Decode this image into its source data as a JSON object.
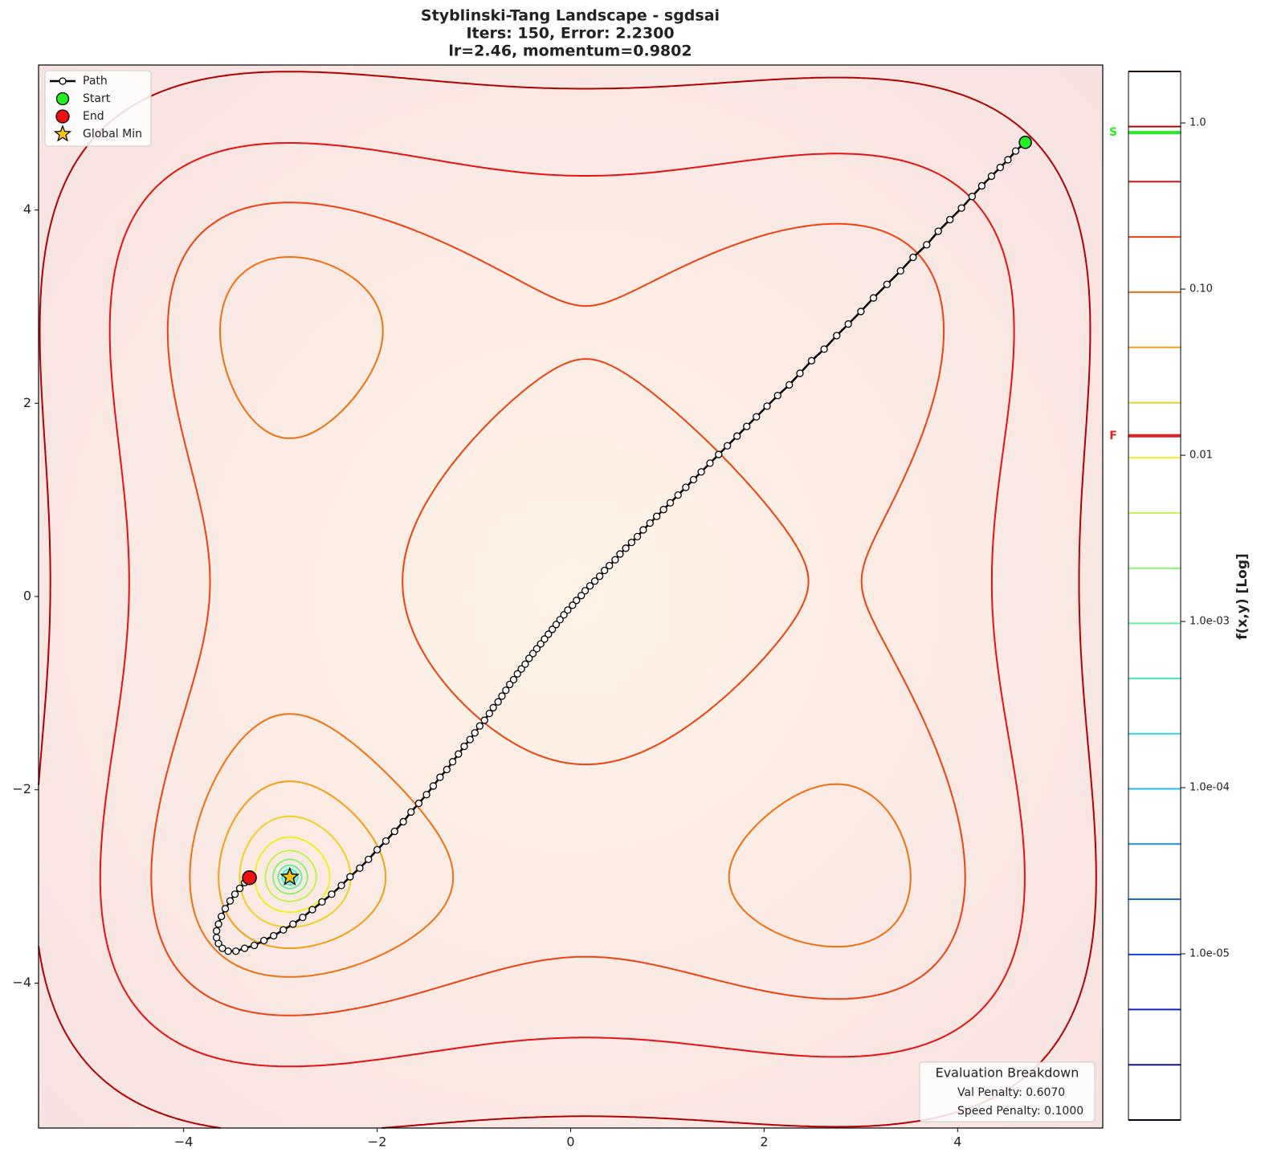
{
  "chart_data": {
    "type": "contour-path",
    "title": "Styblinski-Tang Landscape - sgdsai",
    "subtitle": [
      "Iters: 150, Error: 2.2300",
      "lr=2.46, momentum=0.9802"
    ],
    "xlim": [
      -5.5,
      5.5
    ],
    "ylim": [
      -5.5,
      5.5
    ],
    "xticks": [
      {
        "value": -4,
        "label": "−4"
      },
      {
        "value": -2,
        "label": "−2"
      },
      0,
      2,
      4
    ],
    "yticks": [
      {
        "value": -4,
        "label": "−4"
      },
      {
        "value": -2,
        "label": "−2"
      },
      0,
      2,
      4
    ],
    "legend": "upper left",
    "series": [
      {
        "name": "Path",
        "color": "#000000",
        "x": [
          4.7,
          4.6,
          4.52,
          4.44,
          4.35,
          4.25,
          4.15,
          4.04,
          3.92,
          3.8,
          3.68,
          3.54,
          3.41,
          3.27,
          3.13,
          3.0,
          2.87,
          2.75,
          2.62,
          2.49,
          2.37,
          2.26,
          2.14,
          2.03,
          1.92,
          1.82,
          1.72,
          1.62,
          1.53,
          1.44,
          1.35,
          1.27,
          1.19,
          1.11,
          1.03,
          0.96,
          0.89,
          0.82,
          0.75,
          0.69,
          0.63,
          0.57,
          0.51,
          0.46,
          0.4,
          0.35,
          0.3,
          0.25,
          0.2,
          0.15,
          0.11,
          0.06,
          0.02,
          -0.03,
          -0.07,
          -0.11,
          -0.15,
          -0.19,
          -0.23,
          -0.27,
          -0.31,
          -0.35,
          -0.39,
          -0.43,
          -0.47,
          -0.51,
          -0.55,
          -0.59,
          -0.63,
          -0.67,
          -0.71,
          -0.75,
          -0.8,
          -0.84,
          -0.89,
          -0.94,
          -0.99,
          -1.04,
          -1.1,
          -1.16,
          -1.22,
          -1.28,
          -1.35,
          -1.42,
          -1.49,
          -1.57,
          -1.65,
          -1.73,
          -1.82,
          -1.91,
          -2.0,
          -2.09,
          -2.18,
          -2.28,
          -2.37,
          -2.47,
          -2.57,
          -2.67,
          -2.77,
          -2.87,
          -2.97,
          -3.07,
          -3.17,
          -3.27,
          -3.37,
          -3.46,
          -3.54,
          -3.6,
          -3.64,
          -3.66,
          -3.66,
          -3.64,
          -3.61,
          -3.57,
          -3.52,
          -3.47,
          -3.42,
          -3.37,
          -3.32
        ],
        "values": [
          4.7,
          4.61,
          4.52,
          4.44,
          4.35,
          4.25,
          4.14,
          4.02,
          3.9,
          3.78,
          3.64,
          3.51,
          3.37,
          3.23,
          3.09,
          2.95,
          2.82,
          2.7,
          2.56,
          2.44,
          2.31,
          2.19,
          2.08,
          1.97,
          1.86,
          1.76,
          1.66,
          1.56,
          1.47,
          1.38,
          1.29,
          1.21,
          1.13,
          1.05,
          0.97,
          0.9,
          0.83,
          0.76,
          0.69,
          0.62,
          0.56,
          0.5,
          0.44,
          0.38,
          0.32,
          0.27,
          0.21,
          0.16,
          0.11,
          0.06,
          0.01,
          -0.04,
          -0.09,
          -0.14,
          -0.19,
          -0.24,
          -0.29,
          -0.34,
          -0.39,
          -0.44,
          -0.49,
          -0.54,
          -0.59,
          -0.64,
          -0.7,
          -0.75,
          -0.8,
          -0.86,
          -0.91,
          -0.97,
          -1.03,
          -1.09,
          -1.15,
          -1.21,
          -1.28,
          -1.34,
          -1.41,
          -1.48,
          -1.55,
          -1.63,
          -1.71,
          -1.79,
          -1.87,
          -1.96,
          -2.05,
          -2.14,
          -2.23,
          -2.33,
          -2.43,
          -2.53,
          -2.62,
          -2.72,
          -2.81,
          -2.9,
          -2.99,
          -3.08,
          -3.16,
          -3.24,
          -3.32,
          -3.39,
          -3.45,
          -3.51,
          -3.56,
          -3.61,
          -3.64,
          -3.67,
          -3.67,
          -3.64,
          -3.59,
          -3.53,
          -3.46,
          -3.39,
          -3.31,
          -3.23,
          -3.15,
          -3.08,
          -3.02,
          -2.96,
          -2.91
        ]
      }
    ],
    "start_marker": {
      "name": "Start",
      "color": "#22ee22"
    },
    "end_marker": {
      "name": "End",
      "color": "#ee1111"
    },
    "global_min": {
      "name": "Global Min",
      "color": "#f5c518",
      "x": -2.9035,
      "y": -2.9035
    },
    "colorbar": {
      "label": "f(x,y) [Log]",
      "lim": [
        1e-06,
        2.04
      ],
      "log": true,
      "ticks": [
        {
          "value": 1,
          "label": "1.0"
        },
        {
          "value": 0.1,
          "label": "0.10"
        },
        0.01,
        {
          "value": 0.001,
          "label": "1.0e-03"
        },
        {
          "value": 0.0001,
          "label": "1.0e-04"
        },
        {
          "value": 1e-05,
          "label": "1.0e-05"
        }
      ],
      "levels": [
        1e-06,
        2.15e-06,
        4.62e-06,
        9.91e-06,
        2.13e-05,
        4.58e-05,
        9.84e-05,
        0.000211,
        0.000454,
        0.000975,
        0.00209,
        0.0045,
        0.00966,
        0.0207,
        0.0446,
        0.0959,
        0.206,
        0.443,
        0.951,
        2.04
      ],
      "colors": [
        "#101040",
        "#1010a0",
        "#1020c0",
        "#1840d8",
        "#1868e0",
        "#1890e0",
        "#20b8f8",
        "#30e0e8",
        "#40f0c8",
        "#60f0a0",
        "#90f070",
        "#c8f050",
        "#eef020",
        "#f0d020",
        "#f0a010",
        "#f07010",
        "#f04010",
        "#e81010",
        "#b00000",
        "#400000"
      ],
      "markers": [
        {
          "label": "S",
          "value": 0.875,
          "color": "#22ee22"
        },
        {
          "label": "F",
          "value": 0.0131,
          "color": "#e02020"
        }
      ]
    },
    "annotation": {
      "title": "Evaluation Breakdown",
      "lines": [
        "Val Penalty: 0.6070",
        "Speed Penalty: 0.1000"
      ]
    }
  }
}
